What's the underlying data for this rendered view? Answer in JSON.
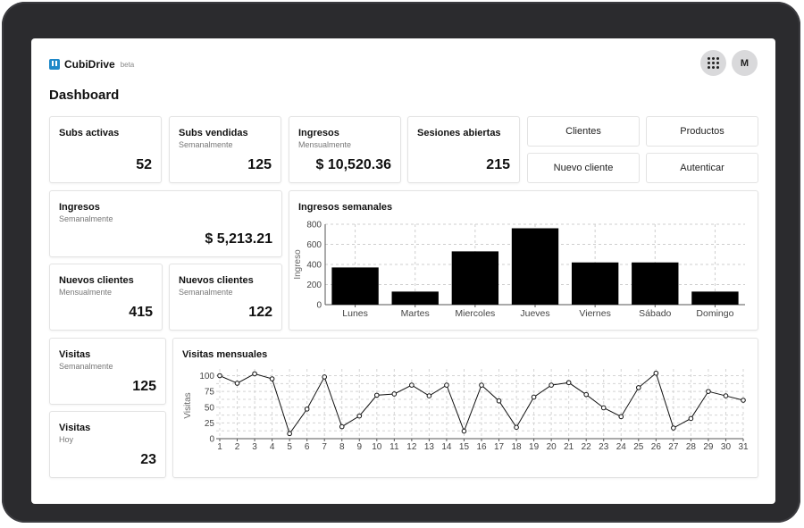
{
  "app": {
    "name": "CubiDrive",
    "badge": "beta",
    "avatar_initial": "M",
    "apps_icon": "grid-icon"
  },
  "page": {
    "title": "Dashboard"
  },
  "stats": {
    "subs_activas": {
      "title": "Subs activas",
      "subtitle": "",
      "value": "52"
    },
    "subs_vendidas": {
      "title": "Subs vendidas",
      "subtitle": "Semanalmente",
      "value": "125"
    },
    "ingresos_mensual": {
      "title": "Ingresos",
      "subtitle": "Mensualmente",
      "value": "$ 10,520.36"
    },
    "sesiones": {
      "title": "Sesiones abiertas",
      "subtitle": "",
      "value": "215"
    },
    "ingresos_semanal": {
      "title": "Ingresos",
      "subtitle": "Semanalmente",
      "value": "$ 5,213.21"
    },
    "nuevos_mensual": {
      "title": "Nuevos clientes",
      "subtitle": "Mensualmente",
      "value": "415"
    },
    "nuevos_semanal": {
      "title": "Nuevos clientes",
      "subtitle": "Semanalmente",
      "value": "122"
    },
    "visitas_semanal": {
      "title": "Visitas",
      "subtitle": "Semanalmente",
      "value": "125"
    },
    "visitas_hoy": {
      "title": "Visitas",
      "subtitle": "Hoy",
      "value": "23"
    }
  },
  "actions": {
    "clientes": "Clientes",
    "productos": "Productos",
    "nuevo_cliente": "Nuevo cliente",
    "autenticar": "Autenticar"
  },
  "chart_data": [
    {
      "type": "bar",
      "title": "Ingresos semanales",
      "xlabel": "",
      "ylabel": "Ingreso",
      "categories": [
        "Lunes",
        "Martes",
        "Miercoles",
        "Jueves",
        "Viernes",
        "Sábado",
        "Domingo"
      ],
      "values": [
        370,
        130,
        530,
        760,
        420,
        420,
        130
      ],
      "ylim": [
        0,
        800
      ],
      "yticks": [
        0,
        200,
        400,
        600,
        800
      ],
      "grid": true,
      "bar_color": "#000000"
    },
    {
      "type": "line",
      "title": "Visitas mensuales",
      "xlabel": "",
      "ylabel": "Visitas",
      "x": [
        1,
        2,
        3,
        4,
        5,
        6,
        7,
        8,
        9,
        10,
        11,
        12,
        13,
        14,
        15,
        16,
        17,
        18,
        19,
        20,
        21,
        22,
        23,
        24,
        25,
        26,
        27,
        28,
        29,
        30,
        31
      ],
      "values": [
        100,
        88,
        103,
        95,
        8,
        47,
        98,
        19,
        36,
        69,
        71,
        85,
        68,
        85,
        12,
        85,
        60,
        18,
        66,
        85,
        89,
        70,
        49,
        35,
        81,
        104,
        17,
        32,
        75,
        68,
        61
      ],
      "ylim": [
        0,
        105
      ],
      "yticks": [
        0,
        25,
        50,
        75,
        100
      ],
      "grid": true,
      "line_color": "#111111"
    }
  ]
}
